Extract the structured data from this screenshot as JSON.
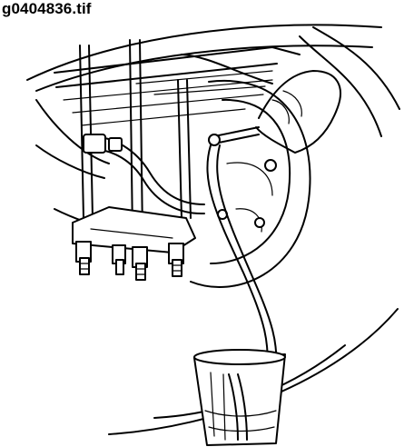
{
  "figure": {
    "filename_label": "g0404836.tif"
  }
}
